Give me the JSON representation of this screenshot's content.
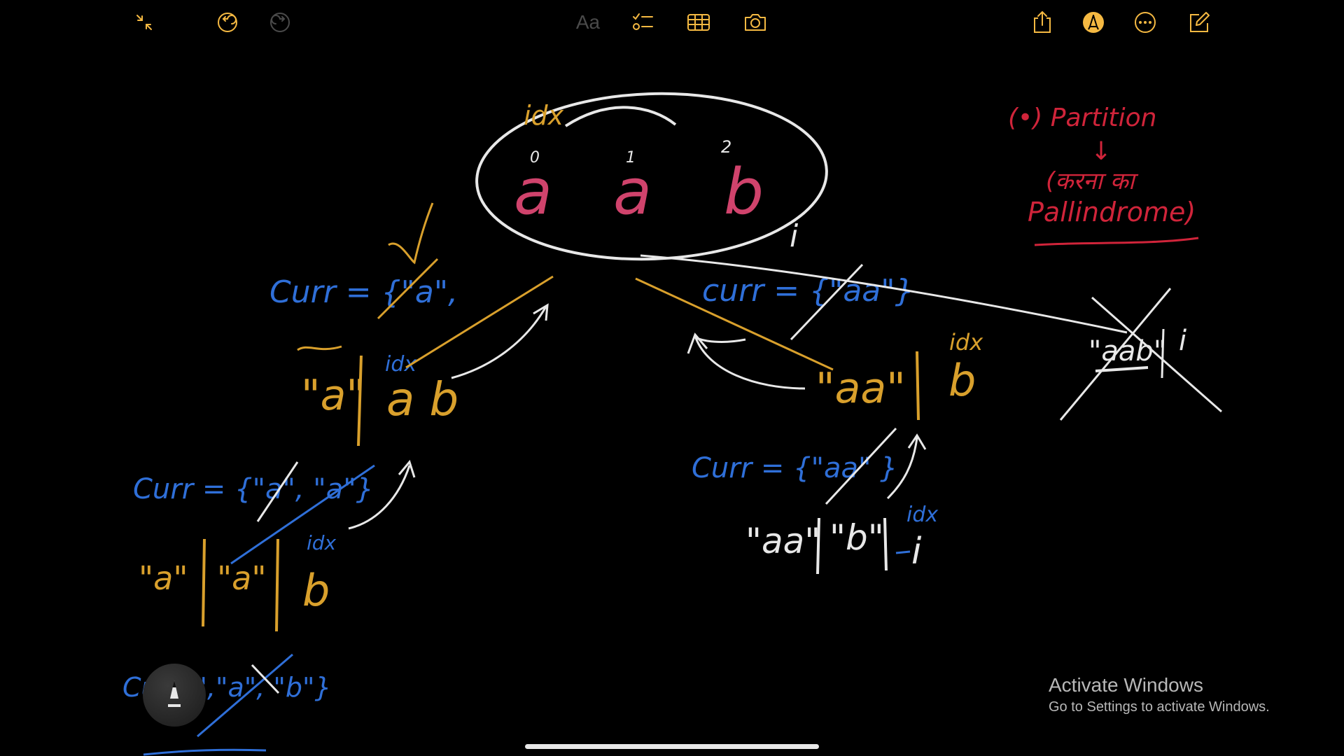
{
  "toolbar": {
    "left": [
      {
        "icon": "collapse-icon"
      },
      {
        "icon": "undo-icon"
      },
      {
        "icon": "redo-icon"
      }
    ],
    "format_label": "Aa",
    "center": [
      {
        "icon": "checklist-icon"
      },
      {
        "icon": "table-icon"
      },
      {
        "icon": "camera-icon"
      }
    ],
    "right": [
      {
        "icon": "share-icon"
      },
      {
        "icon": "markup-pen-icon"
      },
      {
        "icon": "more-icon"
      },
      {
        "icon": "compose-icon"
      }
    ],
    "accent_color": "#f5b942",
    "inactive_color": "#f5b942",
    "disabled_color": "#4a4a4a"
  },
  "colors": {
    "white_ink": "#e8e8e8",
    "gold_ink": "#d9a02c",
    "blue_ink": "#2f6fd8",
    "pink_ink": "#d0436c",
    "red_ink": "#d0243a"
  },
  "notes": {
    "string": {
      "chars": [
        "a",
        "a",
        "b"
      ],
      "indices": [
        "0",
        "1",
        "2"
      ],
      "idx_label": "idx",
      "i_label": "i"
    },
    "partition_note": {
      "title": "(•) Partition",
      "arrow": "↓",
      "line1": "(करना का",
      "line2": "Pallindrome)"
    },
    "left_branch": {
      "curr": "Curr = {\"a\",",
      "node": [
        "\"a\"",
        "|",
        "a b"
      ],
      "idx_label": "idx"
    },
    "right_branch": {
      "curr": "curr = {\"aa\"}",
      "node": [
        "\"aa\"",
        "|",
        "b"
      ],
      "idx_label": "idx"
    },
    "far_right": {
      "node": "\"aab\"",
      "i_label": "i"
    },
    "left_level2": {
      "curr": "Curr = {\"a\", \"a\"}",
      "node": [
        "\"a\"",
        "|",
        "\"a\"",
        "|",
        "b"
      ],
      "idx_label": "idx"
    },
    "right_level2": {
      "curr": "Curr = {\"aa\" }",
      "node": [
        "\"aa\"",
        "|",
        "\"b\"",
        "|",
        "i"
      ],
      "idx_label": "idx"
    },
    "left_level3": {
      "curr": "Cu \"a\",\"a\", \"b\"}"
    }
  },
  "watermark": {
    "title": "Activate Windows",
    "subtitle": "Go to Settings to activate Windows."
  },
  "pen_tool": {
    "icon": "pencil-tool-icon"
  }
}
